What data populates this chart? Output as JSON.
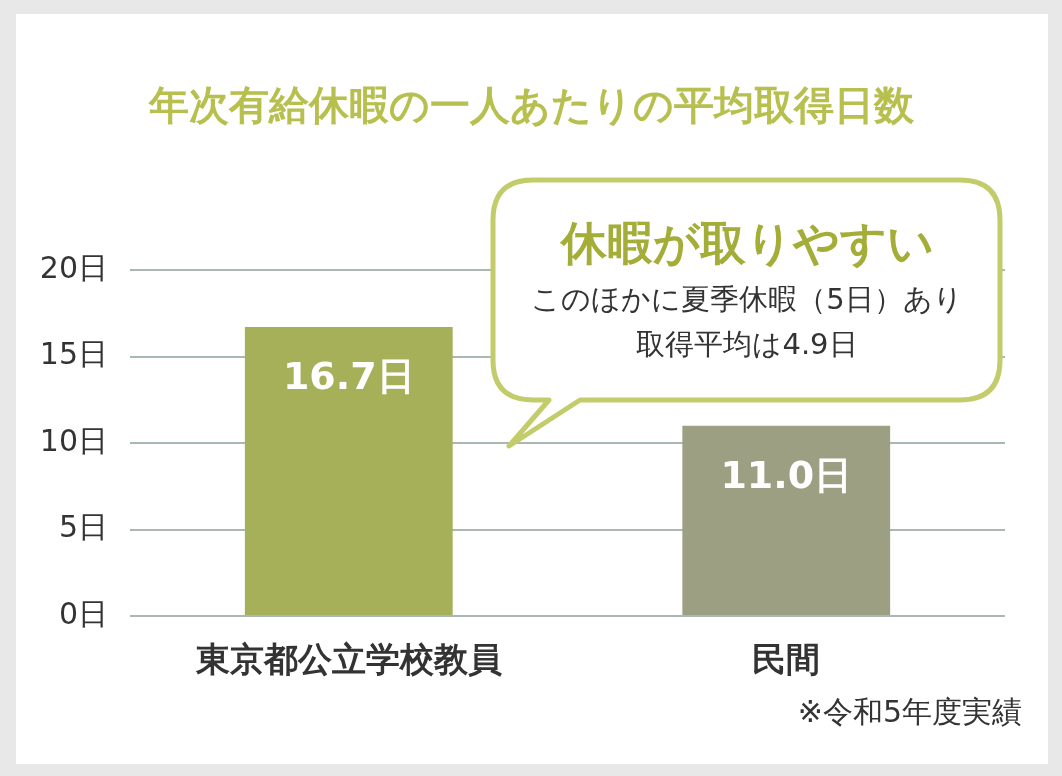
{
  "chart_data": {
    "type": "bar",
    "title": "年次有給休暇の一人あたりの平均取得日数",
    "categories": [
      "東京都公立学校教員",
      "民間"
    ],
    "values": [
      16.7,
      11.0
    ],
    "colors": [
      "#a6b058",
      "#9d9f83"
    ],
    "value_labels": [
      "16.7日",
      "11.0日"
    ],
    "ylim": [
      0,
      20
    ],
    "yticks": [
      {
        "value": 0,
        "label": "0日"
      },
      {
        "value": 5,
        "label": "5日"
      },
      {
        "value": 10,
        "label": "10日"
      },
      {
        "value": 15,
        "label": "15日"
      },
      {
        "value": 20,
        "label": "20日"
      }
    ],
    "grid": "y",
    "annotations": [
      "休暇が取りやすい",
      "このほかに夏季休暇（5日）あり",
      "取得平均は4.9日",
      "※令和5年度実績"
    ]
  }
}
